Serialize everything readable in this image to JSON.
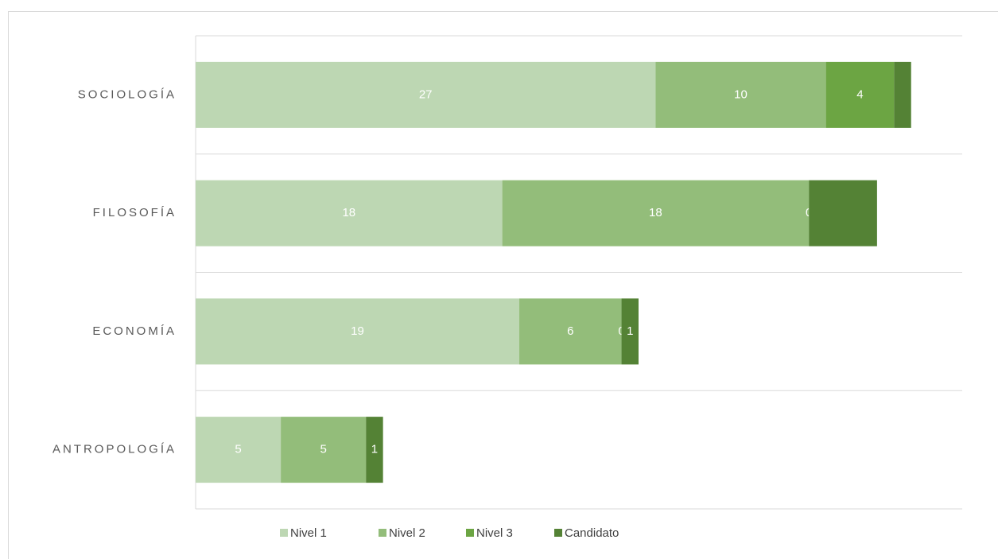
{
  "chart_data": {
    "type": "stacked-barh",
    "categories": [
      "SOCIOLOGÍA",
      "FILOSOFÍA",
      "ECONOMÍA",
      "ANTROPOLOGÍA"
    ],
    "xlim": [
      0,
      45
    ],
    "legend": "bottom",
    "series": [
      {
        "name": "Nivel 1",
        "color": "#bdd7b3",
        "values": [
          27,
          18,
          19,
          5
        ],
        "value_labels": [
          "27",
          "18",
          "19",
          "5"
        ]
      },
      {
        "name": "Nivel 2",
        "color": "#93bd7a",
        "values": [
          10,
          18,
          6,
          5
        ],
        "value_labels": [
          "10",
          "18",
          "6",
          "5"
        ]
      },
      {
        "name": "Nivel 3",
        "color": "#6ca543",
        "values": [
          4,
          0,
          0,
          0
        ],
        "value_labels": [
          "4",
          "0",
          "0",
          null
        ]
      },
      {
        "name": "Candidato",
        "color": "#548235",
        "values": [
          1,
          4,
          1,
          1
        ],
        "value_labels": [
          null,
          null,
          "1",
          "1"
        ]
      }
    ]
  }
}
